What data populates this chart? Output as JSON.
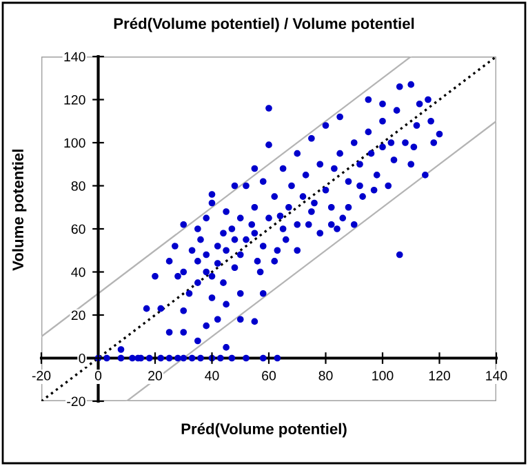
{
  "chart_data": {
    "type": "scatter",
    "title": "Préd(Volume potentiel) / Volume potentiel",
    "xlabel": "Préd(Volume potentiel)",
    "ylabel": "Volume potentiel",
    "xlim": [
      -20,
      140
    ],
    "ylim": [
      -20,
      140
    ],
    "xticks": [
      -20,
      0,
      20,
      40,
      60,
      80,
      100,
      120,
      140
    ],
    "yticks": [
      -20,
      0,
      20,
      40,
      60,
      80,
      100,
      120,
      140
    ],
    "grid": false,
    "legend": false,
    "series": [
      {
        "type": "scatter",
        "marker": "circle",
        "color": "#0000cc",
        "x": [
          0,
          3,
          8,
          12,
          14,
          15,
          18,
          22,
          25,
          28,
          30,
          33,
          36,
          40,
          43,
          47,
          52,
          58,
          63,
          8,
          17,
          22,
          30,
          25,
          30,
          35,
          38,
          42,
          45,
          50,
          55,
          32,
          28,
          20,
          25,
          27,
          33,
          35,
          30,
          38,
          40,
          40,
          48,
          55,
          60,
          60,
          35,
          38,
          40,
          42,
          45,
          44,
          48,
          50,
          52,
          47,
          50,
          55,
          58,
          57,
          55,
          60,
          62,
          65,
          63,
          67,
          68,
          70,
          72,
          73,
          75,
          78,
          80,
          82,
          83,
          85,
          86,
          88,
          90,
          92,
          93,
          95,
          96,
          98,
          100,
          100,
          102,
          104,
          105,
          106,
          108,
          110,
          110,
          112,
          113,
          115,
          118,
          117,
          106,
          90,
          84,
          78,
          70,
          62,
          58,
          50,
          45,
          40,
          35,
          30,
          45,
          52,
          58,
          65,
          70,
          75,
          80,
          85,
          95,
          100,
          88,
          92,
          76,
          64,
          54,
          48,
          42,
          38,
          36,
          44,
          56,
          66,
          74,
          82,
          97,
          103,
          111,
          116,
          120
        ],
        "values": [
          0,
          0,
          0,
          0,
          0,
          0,
          0,
          0,
          0,
          0,
          0,
          0,
          0,
          0,
          0,
          0,
          0,
          0,
          0,
          4,
          23,
          23,
          22,
          12,
          12,
          8,
          15,
          18,
          5,
          18,
          17,
          30,
          38,
          38,
          45,
          52,
          50,
          60,
          62,
          65,
          72,
          76,
          80,
          88,
          99,
          116,
          45,
          40,
          38,
          44,
          50,
          35,
          42,
          48,
          55,
          60,
          65,
          58,
          52,
          40,
          70,
          65,
          75,
          60,
          50,
          70,
          80,
          62,
          75,
          85,
          68,
          90,
          78,
          70,
          88,
          95,
          65,
          82,
          100,
          90,
          75,
          105,
          95,
          85,
          110,
          98,
          80,
          92,
          115,
          126,
          100,
          127,
          90,
          108,
          118,
          85,
          100,
          110,
          48,
          62,
          60,
          58,
          50,
          45,
          30,
          30,
          25,
          28,
          35,
          40,
          68,
          80,
          82,
          88,
          95,
          102,
          108,
          112,
          120,
          118,
          70,
          80,
          72,
          66,
          62,
          55,
          52,
          48,
          55,
          58,
          45,
          55,
          62,
          62,
          78,
          100,
          98,
          120,
          104
        ]
      },
      {
        "type": "line",
        "color": "#b4b4b4",
        "line_style": "solid",
        "x": [
          -20,
          110
        ],
        "values": [
          10,
          140
        ]
      },
      {
        "type": "line",
        "color": "#b4b4b4",
        "line_style": "solid",
        "x": [
          10,
          140
        ],
        "values": [
          -20,
          110
        ]
      },
      {
        "type": "line",
        "color": "#000000",
        "line_style": "dotted",
        "x": [
          -20,
          140
        ],
        "values": [
          -20,
          140
        ]
      }
    ]
  }
}
